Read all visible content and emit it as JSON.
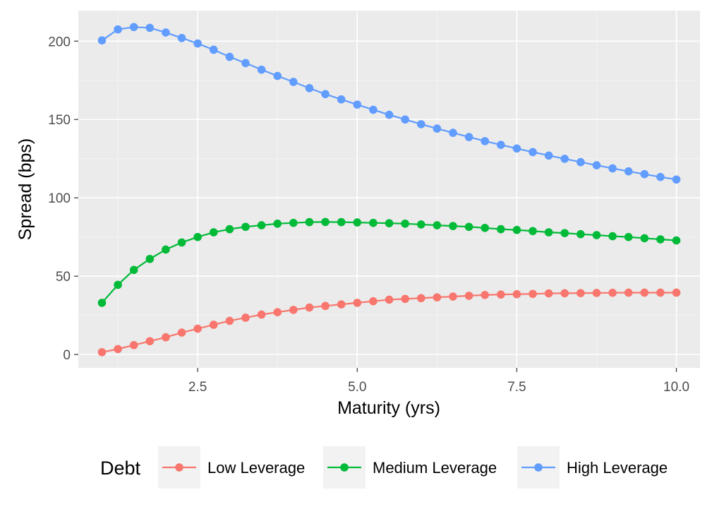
{
  "chart_data": {
    "type": "line",
    "title": "",
    "xlabel": "Maturity (yrs)",
    "ylabel": "Spread (bps)",
    "xlim": [
      0.63,
      10.37
    ],
    "ylim": [
      -8.5,
      219.5
    ],
    "x_ticks": [
      2.5,
      5.0,
      7.5,
      10.0
    ],
    "x_tick_labels": [
      "2.5",
      "5.0",
      "7.5",
      "10.0"
    ],
    "y_ticks": [
      0,
      50,
      100,
      150,
      200
    ],
    "y_tick_labels": [
      "0",
      "50",
      "100",
      "150",
      "200"
    ],
    "grid": true,
    "legend": {
      "title": "Debt",
      "placement": "bottom"
    },
    "x": [
      1.0,
      1.25,
      1.5,
      1.75,
      2.0,
      2.25,
      2.5,
      2.75,
      3.0,
      3.25,
      3.5,
      3.75,
      4.0,
      4.25,
      4.5,
      4.75,
      5.0,
      5.25,
      5.5,
      5.75,
      6.0,
      6.25,
      6.5,
      6.75,
      7.0,
      7.25,
      7.5,
      7.75,
      8.0,
      8.25,
      8.5,
      8.75,
      9.0,
      9.25,
      9.5,
      9.75,
      10.0
    ],
    "series": [
      {
        "name": "Low Leverage",
        "color": "#F8766D",
        "values": [
          1.5,
          3.5,
          6.0,
          8.5,
          11.0,
          14.0,
          16.5,
          19.0,
          21.5,
          23.5,
          25.5,
          27.0,
          28.5,
          30.0,
          31.0,
          32.0,
          33.0,
          34.0,
          35.0,
          35.5,
          36.0,
          36.5,
          37.0,
          37.5,
          38.0,
          38.3,
          38.5,
          38.7,
          39.0,
          39.1,
          39.2,
          39.3,
          39.4,
          39.5,
          39.5,
          39.5,
          39.5
        ]
      },
      {
        "name": "Medium Leverage",
        "color": "#00BA38",
        "values": [
          33.0,
          44.5,
          54.0,
          61.0,
          67.0,
          71.5,
          75.0,
          78.0,
          80.0,
          81.5,
          82.5,
          83.5,
          84.0,
          84.5,
          84.6,
          84.5,
          84.3,
          84.0,
          83.8,
          83.5,
          83.0,
          82.5,
          82.0,
          81.5,
          80.8,
          80.0,
          79.5,
          78.8,
          78.0,
          77.5,
          76.8,
          76.2,
          75.5,
          75.0,
          74.2,
          73.5,
          72.8
        ]
      },
      {
        "name": "High Leverage",
        "color": "#619CFF",
        "values": [
          200.5,
          207.5,
          209.0,
          208.5,
          205.5,
          202.0,
          198.5,
          194.5,
          190.0,
          186.0,
          181.8,
          177.8,
          174.0,
          170.0,
          166.2,
          162.8,
          159.5,
          156.2,
          153.0,
          150.0,
          147.0,
          144.2,
          141.5,
          138.8,
          136.2,
          133.8,
          131.5,
          129.2,
          127.0,
          124.9,
          122.8,
          120.8,
          118.8,
          116.9,
          115.1,
          113.3,
          111.7
        ]
      }
    ]
  }
}
